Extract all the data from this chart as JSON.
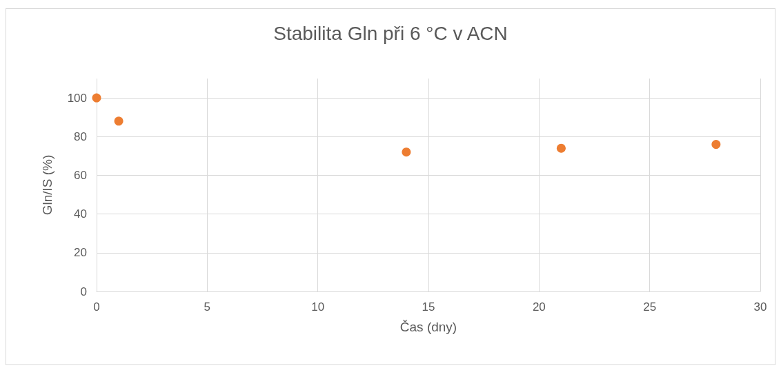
{
  "chart_data": {
    "type": "scatter",
    "title": "Stabilita Gln při 6 °C v ACN",
    "xlabel": "Čas (dny)",
    "ylabel": "Gln/IS (%)",
    "x": [
      0,
      1,
      14,
      21,
      28
    ],
    "series": [
      {
        "color": "#ed7d31",
        "values": [
          100,
          88,
          72,
          74,
          76
        ]
      }
    ],
    "xlim": [
      0,
      30
    ],
    "xticks": [
      0,
      5,
      10,
      15,
      20,
      25,
      30
    ],
    "ylim": [
      0,
      110
    ],
    "yticks": [
      0,
      20,
      40,
      60,
      80,
      100
    ],
    "grid": true,
    "marker": "circle"
  }
}
